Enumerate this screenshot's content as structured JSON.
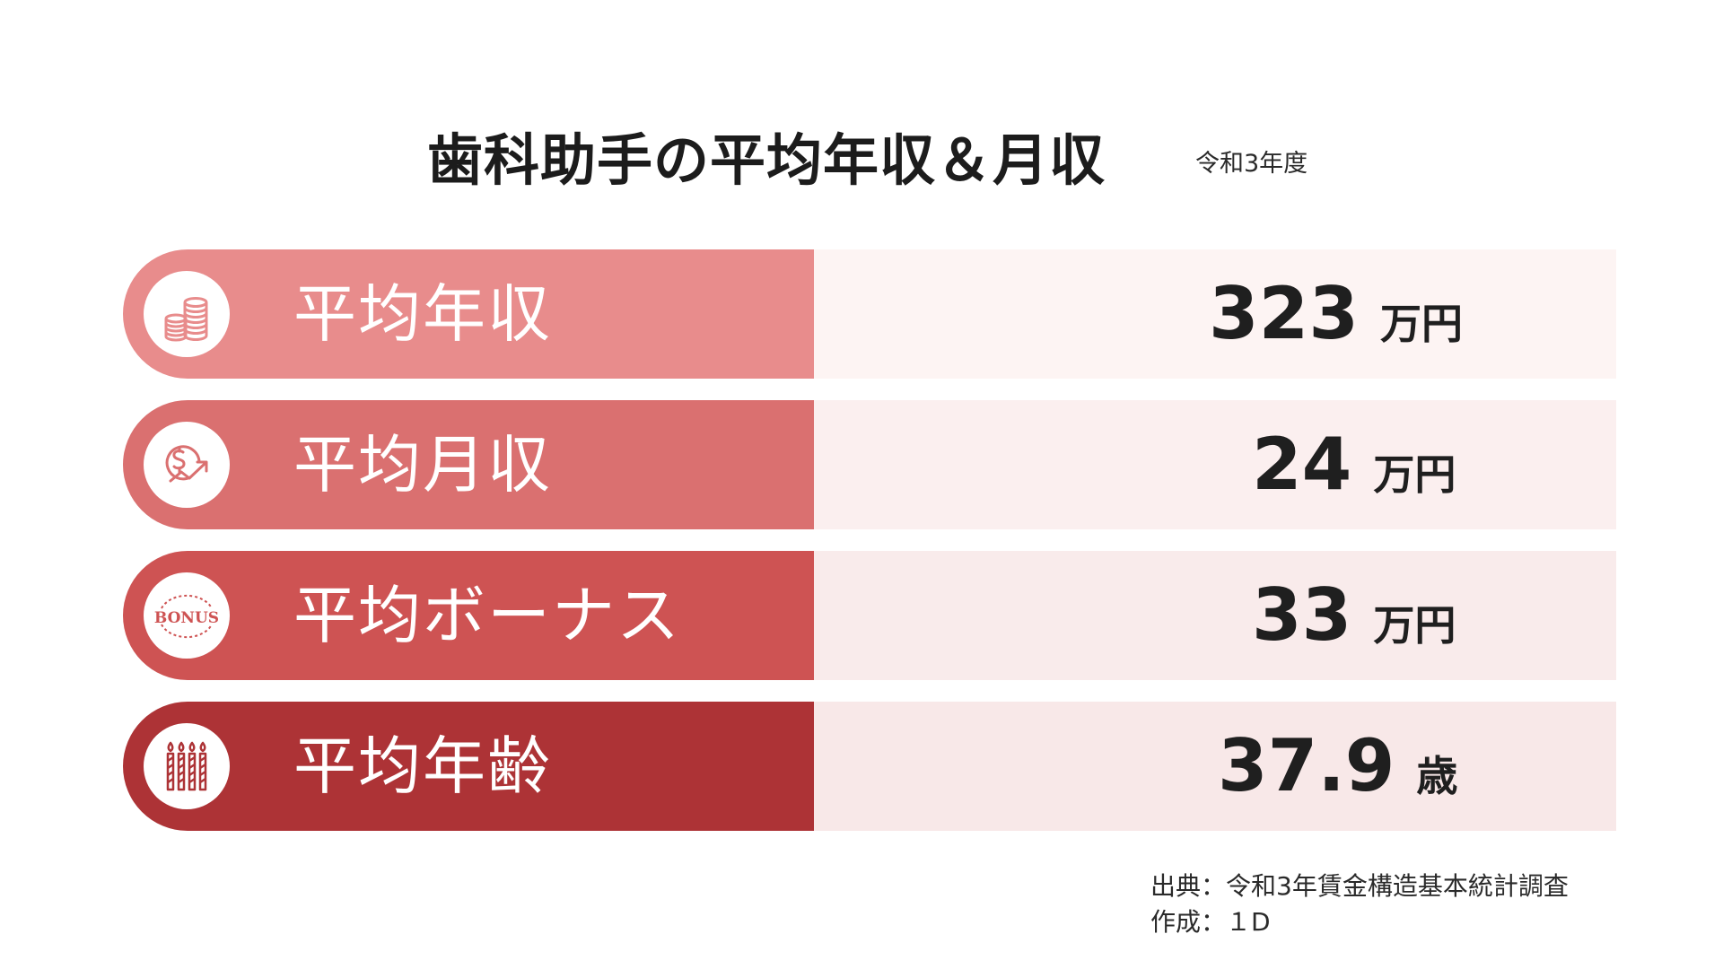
{
  "header": {
    "title": "歯科助手の平均年収＆月収",
    "subtitle": "令和3年度"
  },
  "rows": [
    {
      "label": "平均年収",
      "value": "323",
      "unit": "万円",
      "icon": "coins-icon",
      "color": "#e88c8c",
      "bg": "#fdf4f3"
    },
    {
      "label": "平均月収",
      "value": "24",
      "unit": "万円",
      "icon": "dollar-growth-icon",
      "color": "#da7070",
      "bg": "#fbefef"
    },
    {
      "label": "平均ボーナス",
      "value": "33",
      "unit": "万円",
      "icon": "bonus-stamp-icon",
      "icon_text": "BONUS",
      "color": "#ce5353",
      "bg": "#f9ebeb"
    },
    {
      "label": "平均年齢",
      "value": "37.9",
      "unit": "歳",
      "icon": "candles-icon",
      "color": "#ad3336",
      "bg": "#f8e8e8"
    }
  ],
  "footer": {
    "source": "出典：令和3年賃金構造基本統計調査",
    "author": "作成：１D"
  }
}
